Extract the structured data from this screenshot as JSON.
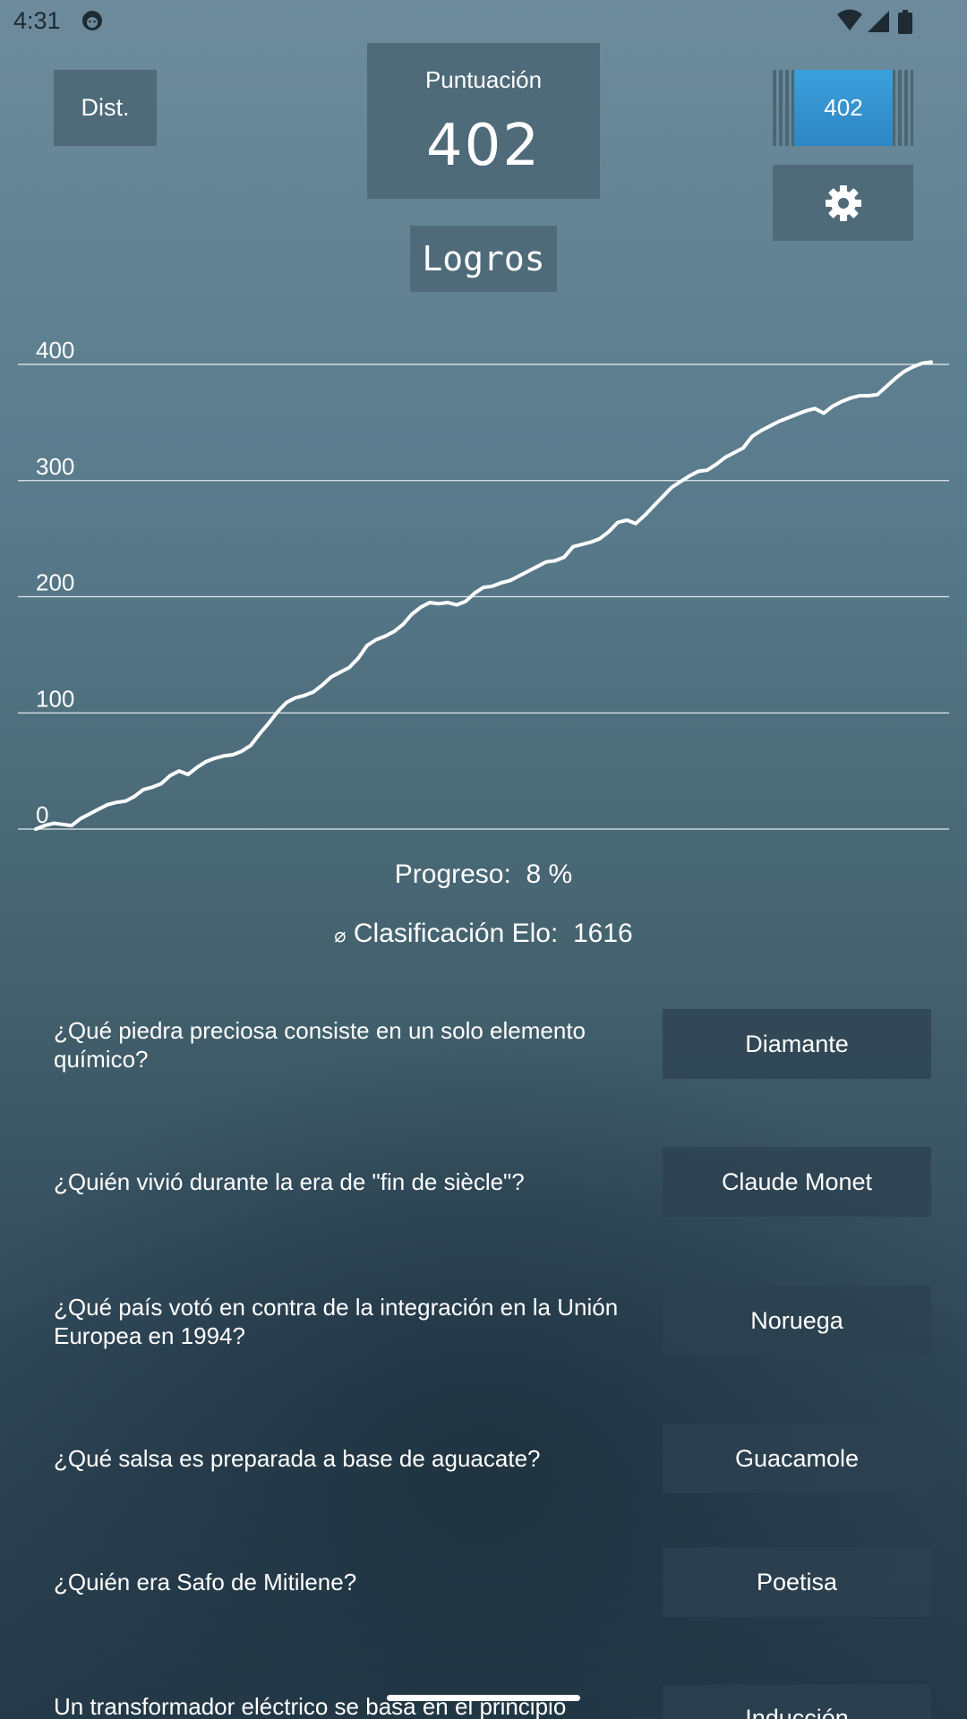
{
  "status_bar": {
    "time": "4:31"
  },
  "header": {
    "dist_label": "Dist.",
    "score_label": "Puntuación",
    "score_value": "402",
    "badge_value": "402",
    "achievements_label": "Logros"
  },
  "chart_data": {
    "type": "line",
    "yticks": [
      "0",
      "100",
      "200",
      "300",
      "400"
    ],
    "ylim": [
      0,
      420
    ],
    "grid": true,
    "series": [
      {
        "x": [
          0,
          1,
          2,
          3,
          4,
          5,
          6,
          7,
          8,
          9,
          10,
          11,
          12,
          13,
          14,
          15,
          16,
          17,
          18,
          19,
          20,
          21,
          22,
          23,
          24,
          25,
          26,
          27,
          28,
          29,
          30,
          31,
          32,
          33,
          34,
          35,
          36,
          37,
          38,
          39,
          40,
          41,
          42,
          43,
          44,
          45,
          46,
          47,
          48,
          49,
          50,
          51,
          52,
          53,
          54,
          55,
          56,
          57,
          58,
          59,
          60,
          61,
          62,
          63,
          64,
          65,
          66,
          67,
          68,
          69,
          70,
          71,
          72,
          73,
          74,
          75,
          76,
          77,
          78,
          79,
          80,
          81,
          82,
          83,
          84,
          85,
          86,
          87,
          88,
          89,
          90,
          91,
          92,
          93,
          94,
          95,
          96,
          97,
          98,
          99,
          100
        ],
        "values": [
          0,
          3,
          5,
          4,
          3,
          9,
          13,
          17,
          21,
          23,
          24,
          28,
          34,
          36,
          39,
          46,
          50,
          47,
          53,
          58,
          61,
          63,
          64,
          67,
          72,
          82,
          91,
          101,
          109,
          113,
          115,
          118,
          124,
          131,
          135,
          139,
          147,
          158,
          163,
          166,
          170,
          176,
          185,
          191,
          195,
          194,
          195,
          193,
          196,
          203,
          208,
          209,
          212,
          214,
          218,
          222,
          226,
          230,
          231,
          234,
          243,
          245,
          247,
          250,
          256,
          264,
          266,
          263,
          270,
          278,
          286,
          294,
          299,
          304,
          308,
          309,
          314,
          320,
          324,
          328,
          338,
          343,
          347,
          351,
          354,
          357,
          360,
          362,
          358,
          364,
          368,
          371,
          373,
          373,
          374,
          381,
          388,
          394,
          398,
          401,
          402
        ]
      }
    ]
  },
  "stats": {
    "progress_label": "Progreso:",
    "progress_value": "8 %",
    "elo_symbol": "⌀",
    "elo_label": "Clasificación Elo:",
    "elo_value": "1616"
  },
  "questions": [
    {
      "question": "¿Qué piedra preciosa consiste en un solo elemento químico?",
      "answer": "Diamante"
    },
    {
      "question": "¿Quién vivió durante la era de \"fin de siècle\"?",
      "answer": "Claude Monet"
    },
    {
      "question": "¿Qué país votó en contra de la integración en la Unión Europea en 1994?",
      "answer": "Noruega"
    },
    {
      "question": "¿Qué salsa es preparada a base de aguacate?",
      "answer": "Guacamole"
    },
    {
      "question": "¿Quién era Safo de Mitilene?",
      "answer": "Poetisa"
    },
    {
      "question": "Un transformador eléctrico se basa en el principio",
      "answer": "Inducción"
    }
  ],
  "icons": {
    "settings": "gear-icon",
    "app_notification": "android-notification-icon",
    "wifi": "wifi-icon",
    "signal": "signal-icon",
    "battery": "battery-icon"
  }
}
